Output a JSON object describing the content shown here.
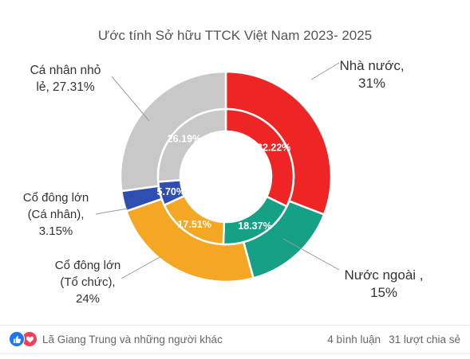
{
  "chart_data": {
    "type": "donut",
    "title": "Ước tính Sở hữu TTCK Việt Nam 2023- 2025",
    "outer_ring": [
      {
        "name": "Nhà nước",
        "value": 31,
        "label_line1": "Nhà nước,",
        "label_line2": "31%",
        "color": "#ef2525"
      },
      {
        "name": "Nước ngoài",
        "value": 15,
        "label_line1": "Nước ngoài ,",
        "label_line2": "15%",
        "color": "#16a085"
      },
      {
        "name": "Cổ đông lớn (Tổ chức)",
        "value": 24,
        "label_line1": "Cổ đông lớn",
        "label_line2": "(Tổ chức),",
        "label_line3": "24%",
        "color": "#f5a623"
      },
      {
        "name": "Cổ đông lớn (Cá nhân)",
        "value": 3.15,
        "label_line1": "Cổ đông lớn",
        "label_line2": "(Cá nhân),",
        "label_line3": "3.15%",
        "color": "#2f4fb0"
      },
      {
        "name": "Cá nhân nhỏ lẻ",
        "value": 27.31,
        "label_line1": "Cá nhân nhỏ",
        "label_line2": "lẻ, 27.31%",
        "color": "#c8c8c8"
      }
    ],
    "inner_ring": [
      {
        "name": "Nhà nước",
        "value": 32.22,
        "label": "32.22%",
        "color": "#ef2525"
      },
      {
        "name": "Nước ngoài",
        "value": 18.37,
        "label": "18.37%",
        "color": "#16a085"
      },
      {
        "name": "Cổ đông lớn (Tổ chức)",
        "value": 17.51,
        "label": "17.51%",
        "color": "#f5a623"
      },
      {
        "name": "Cổ đông lớn (Cá nhân)",
        "value": 5.7,
        "label": "5.70%",
        "color": "#2f4fb0"
      },
      {
        "name": "Cá nhân nhỏ lẻ",
        "value": 26.19,
        "label": "26.19%",
        "color": "#c8c8c8"
      }
    ]
  },
  "social": {
    "reactors": "Lã Giang Trung và những người khác",
    "comments": "4 bình luận",
    "shares": "31 lượt chia sẻ",
    "like_icon": "like-icon",
    "love_icon": "love-icon"
  }
}
